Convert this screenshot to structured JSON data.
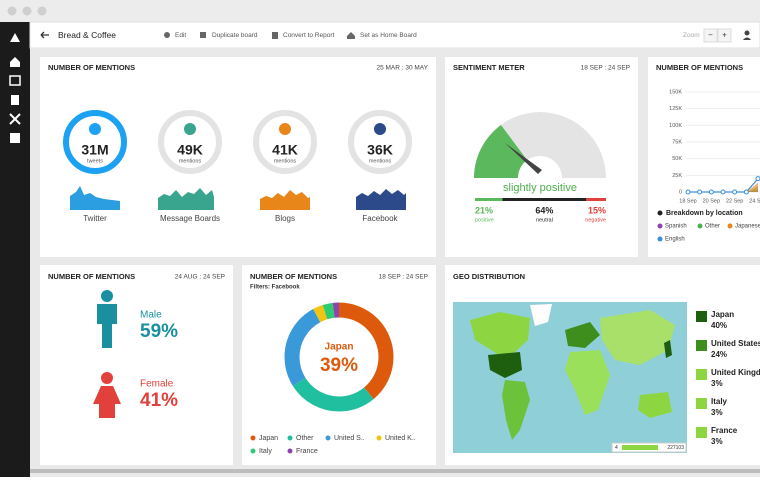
{
  "toolbar": {
    "board": "Bread & Coffee",
    "actions": [
      "Edit",
      "Duplicate board",
      "Convert to Report",
      "Set as Home Board"
    ],
    "zoom": "Zoom",
    "zoom_out": "−",
    "zoom_in": "+"
  },
  "mentions_summary": {
    "title": "NUMBER OF MENTIONS",
    "range": "25 MAR : 30 MAY",
    "items": [
      {
        "value": "31M",
        "unit": "tweets",
        "label": "Twitter"
      },
      {
        "value": "49K",
        "unit": "mentions",
        "label": "Message Boards"
      },
      {
        "value": "41K",
        "unit": "mentions",
        "label": "Blogs"
      },
      {
        "value": "36K",
        "unit": "mentions",
        "label": "Facebook"
      }
    ]
  },
  "sentiment": {
    "title": "SENTIMENT METER",
    "range": "18 SEP : 24 SEP",
    "verdict": "slightly positive",
    "names": [
      "positive",
      "neutral",
      "negative"
    ],
    "values": [
      21,
      64,
      15
    ],
    "value_labels": [
      "21%",
      "64%",
      "15%"
    ],
    "colors": [
      "#5cb85c",
      "#222222",
      "#e2403a"
    ]
  },
  "trend": {
    "type": "line",
    "title": "NUMBER OF MENTIONS",
    "categories": [
      "18 Sep",
      null,
      "20 Sep",
      null,
      "22 Sep",
      null,
      "24 Sep"
    ],
    "ylim": [
      0,
      150000
    ],
    "yticks": [
      0,
      {
        "value": 25000,
        "label": "25K"
      },
      {
        "value": 50000,
        "label": "50K"
      },
      {
        "value": 75000,
        "label": "75K"
      },
      {
        "value": 100000,
        "label": "100K"
      },
      {
        "value": 125000,
        "label": "125K"
      },
      {
        "value": 150000,
        "label": "150K"
      }
    ],
    "legend_title": "Breakdown by location",
    "series": [
      {
        "name": "Spanish",
        "color": "#8e44ad",
        "values": [
          0,
          0,
          0,
          0,
          0,
          0,
          3000
        ]
      },
      {
        "name": "Other",
        "color": "#4caf50",
        "values": [
          0,
          0,
          0,
          0,
          0,
          0,
          8000
        ]
      },
      {
        "name": "Japanese",
        "color": "#e8861a",
        "values": [
          0,
          0,
          0,
          0,
          0,
          0,
          14000
        ]
      },
      {
        "name": "English",
        "color": "#3a8fd9",
        "values": [
          0,
          0,
          0,
          0,
          0,
          0,
          20000
        ]
      }
    ]
  },
  "gender": {
    "title": "NUMBER OF MENTIONS",
    "range": "24 AUG : 24 SEP",
    "categories": [
      "Male",
      "Female"
    ],
    "values": [
      59,
      41
    ],
    "value_labels": [
      "59%",
      "41%"
    ],
    "colors": [
      "#1a8fa0",
      "#e2403a"
    ]
  },
  "countries": {
    "type": "pie",
    "title": "NUMBER OF MENTIONS",
    "range": "18 SEP : 24 SEP",
    "filter": "Filters: Facebook",
    "categories": [
      "Japan",
      "Other",
      "United S..",
      "United K..",
      "Italy",
      "France"
    ],
    "values": [
      39,
      27,
      26,
      3,
      3,
      2
    ],
    "center_value_label": "39%",
    "colors": [
      "#dd5a0c",
      "#1fbf9f",
      "#3a9ad9",
      "#f1c40f",
      "#2ecc71",
      "#8e44ad"
    ]
  },
  "geo": {
    "title": "GEO DISTRIBUTION",
    "legend": [
      {
        "name": "Japan",
        "share": "40%",
        "color": "#1e5e0f"
      },
      {
        "name": "United States",
        "share": "24%",
        "color": "#3e8e1e"
      },
      {
        "name": "United Kingdom",
        "share": "3%",
        "color": "#8ed641"
      },
      {
        "name": "Italy",
        "share": "3%",
        "color": "#8ed641"
      },
      {
        "name": "France",
        "share": "3%",
        "color": "#8ed641"
      }
    ],
    "scale_min": "4",
    "scale_max": "227103"
  }
}
